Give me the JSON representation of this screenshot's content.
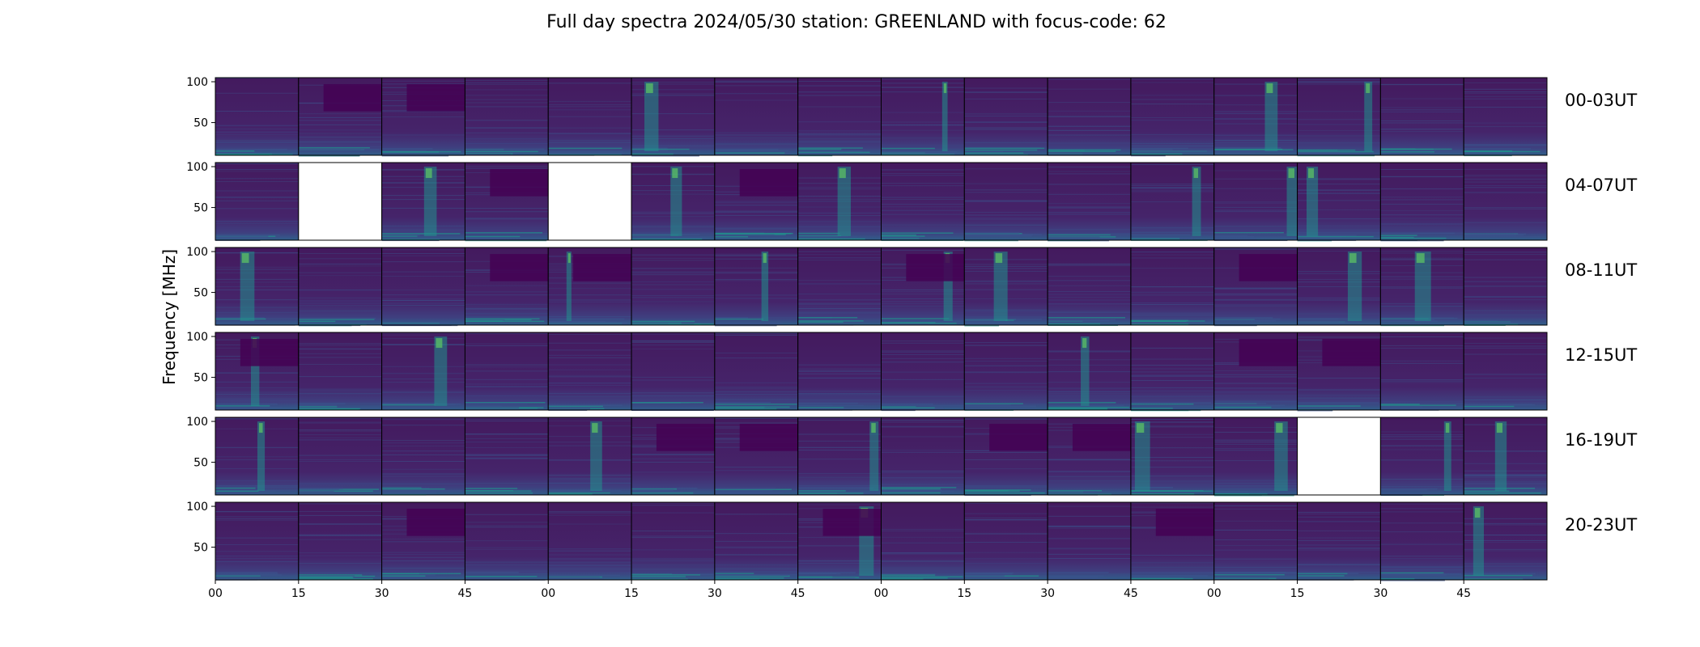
{
  "chart_data": {
    "type": "heatmap",
    "title": "Full day spectra 2024/05/30 station: GREENLAND with focus-code: 62",
    "ylabel": "Frequency [MHz]",
    "ytick_labels": [
      "100",
      "50"
    ],
    "yticks": [
      100,
      50
    ],
    "ylim": [
      10,
      105
    ],
    "xtick_labels": [
      "00",
      "15",
      "30",
      "45",
      "00",
      "15",
      "30",
      "45",
      "00",
      "15",
      "30",
      "45",
      "00",
      "15",
      "30",
      "45"
    ],
    "panels_per_row": 16,
    "missing_panels": [
      [
        1,
        1
      ],
      [
        1,
        4
      ],
      [
        4,
        13
      ]
    ],
    "colormap": [
      "#440154",
      "#3b528b",
      "#21918c",
      "#5ec962",
      "#fde725"
    ],
    "rows": [
      {
        "label": "00-03UT"
      },
      {
        "label": "04-07UT"
      },
      {
        "label": "08-11UT"
      },
      {
        "label": "12-15UT"
      },
      {
        "label": "16-19UT"
      },
      {
        "label": "20-23UT"
      }
    ]
  }
}
